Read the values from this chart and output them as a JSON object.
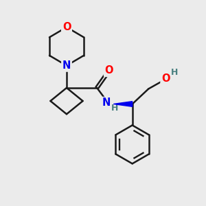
{
  "background_color": "#ebebeb",
  "bond_color": "#1a1a1a",
  "bond_width": 1.8,
  "atom_colors": {
    "O": "#ff0000",
    "N": "#0000ee",
    "C": "#1a1a1a",
    "H": "#4a8080"
  },
  "font_size_atoms": 10.5,
  "font_size_H": 9.0,
  "figsize": [
    3.0,
    3.0
  ],
  "dpi": 100,
  "xlim": [
    0,
    10
  ],
  "ylim": [
    0,
    10
  ]
}
